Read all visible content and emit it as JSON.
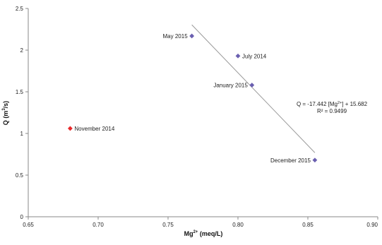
{
  "chart_data": {
    "type": "scatter",
    "xlabel_main": "Mg",
    "xlabel_sup": "2+",
    "xlabel_rest": " (meq/L)",
    "ylabel_main": "Q (m",
    "ylabel_sup": "3",
    "ylabel_rest": "/s)",
    "xlim": [
      0.65,
      0.9
    ],
    "ylim": [
      0,
      2.5
    ],
    "x_ticks": [
      "0.65",
      "0.70",
      "0.75",
      "0.80",
      "0.85",
      "0.90"
    ],
    "y_ticks": [
      "0",
      "0.5",
      "1",
      "1.5",
      "2",
      "2.5"
    ],
    "grid": false,
    "points": [
      {
        "label": "May 2015",
        "x": 0.767,
        "y": 2.17,
        "color": "#6a5fb0",
        "marker": "diamond"
      },
      {
        "label": "July 2014",
        "x": 0.8,
        "y": 1.93,
        "color": "#6a5fb0",
        "marker": "diamond"
      },
      {
        "label": "January 2015",
        "x": 0.81,
        "y": 1.58,
        "color": "#6a5fb0",
        "marker": "diamond"
      },
      {
        "label": "December 2015",
        "x": 0.855,
        "y": 0.68,
        "color": "#6a5fb0",
        "marker": "diamond"
      },
      {
        "label": "November 2014",
        "x": 0.68,
        "y": 1.06,
        "color": "#e8292b",
        "marker": "diamond"
      }
    ],
    "trendline": {
      "slope": -17.442,
      "intercept": 15.682,
      "x_range": [
        0.767,
        0.855
      ],
      "color": "#9a9a9a"
    },
    "equation_main": "Q = -17.442 [Mg",
    "equation_sup": "2+",
    "equation_rest": "] + 15.682",
    "r2_text": "R² = 0.9499"
  }
}
